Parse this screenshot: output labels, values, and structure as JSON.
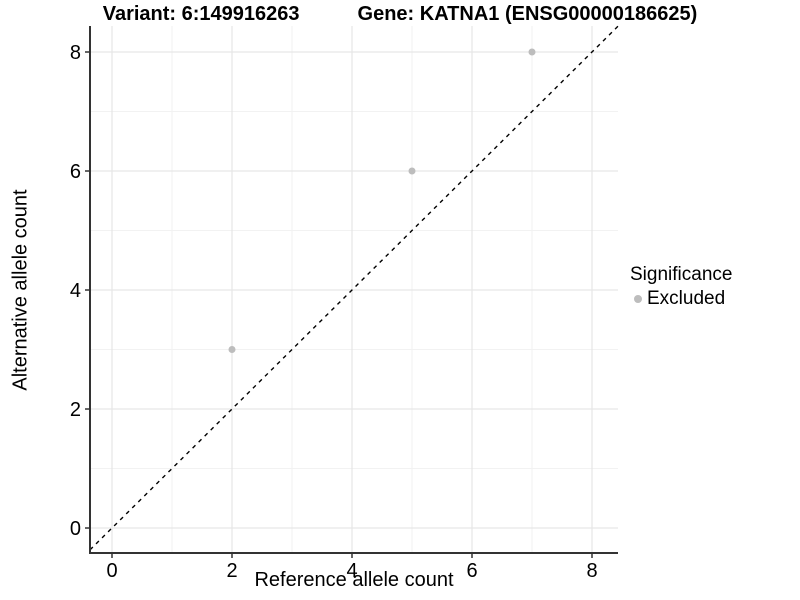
{
  "chart_data": {
    "type": "scatter",
    "title_left": "Variant: 6:149916263",
    "title_right": "Gene: KATNA1 (ENSG00000186625)",
    "xlabel": "Reference allele count",
    "ylabel": "Alternative allele count",
    "xlim": [
      -0.3667,
      8.4333
    ],
    "ylim": [
      -0.42,
      8.437
    ],
    "x_ticks": [
      0,
      2,
      4,
      6,
      8
    ],
    "y_ticks": [
      0,
      2,
      4,
      6,
      8
    ],
    "x_minor_ticks": [
      1,
      3,
      5,
      7
    ],
    "y_minor_ticks": [
      1,
      3,
      5,
      7
    ],
    "grid": "on",
    "points": [
      {
        "x": 2,
        "y": 3,
        "series": "Excluded"
      },
      {
        "x": 5,
        "y": 6,
        "series": "Excluded"
      },
      {
        "x": 7,
        "y": 8,
        "series": "Excluded"
      }
    ],
    "identity_line": {
      "slope": 1,
      "intercept": 0,
      "style": "dashed"
    },
    "legend": {
      "title": "Significance",
      "position": "right",
      "items": [
        {
          "label": "Excluded",
          "color": "#bdbdbd"
        }
      ]
    },
    "colors": {
      "point": "#bdbdbd",
      "identity_line": "#000000",
      "axis_line": "#333333",
      "grid_major": "#e6e6e6",
      "grid_minor": "#f2f2f2",
      "text": "#000000"
    }
  }
}
